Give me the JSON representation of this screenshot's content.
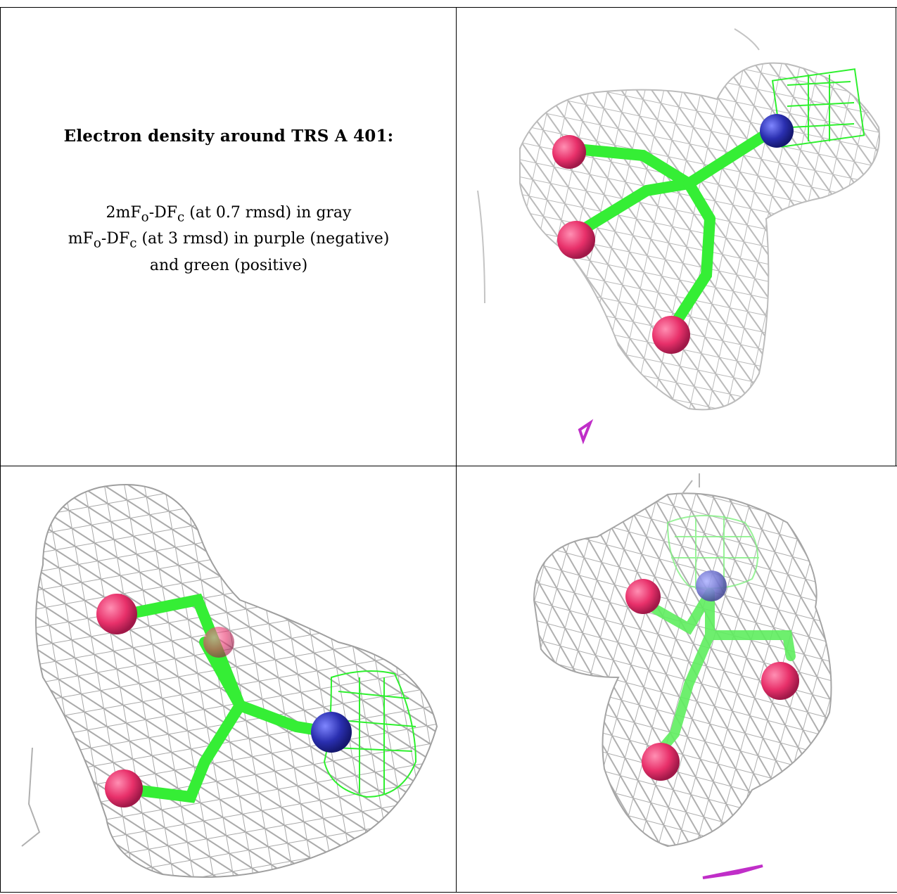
{
  "caption": {
    "title": "Electron density around TRS A 401:",
    "line1_a": "2mF",
    "line1_sub1": "o",
    "line1_b": "-DF",
    "line1_sub2": "c",
    "line1_c": " (at 0.7 rmsd) in gray",
    "line2_a": "mF",
    "line2_sub1": "o",
    "line2_b": "-DF",
    "line2_sub2": "c",
    "line2_c": " (at 3 rmsd) in purple (negative)",
    "line3": "and green (positive)"
  },
  "colors": {
    "mesh_gray": "#b4b4b4",
    "mesh_dark": "#8a8a8a",
    "bond_green": "#33ee33",
    "oxygen": "#e8306a",
    "nitrogen": "#2a2fb0",
    "pos_green": "#22ee22",
    "neg_purple": "#c02ec8"
  }
}
